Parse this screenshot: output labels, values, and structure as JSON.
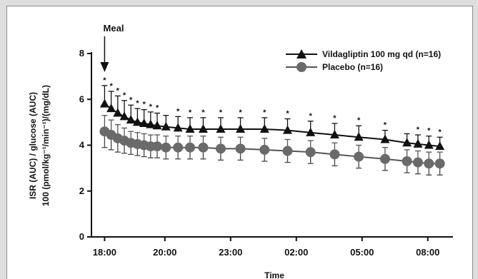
{
  "chart_data": {
    "type": "line",
    "xlabel": "Time",
    "ylabel_line1": "ISR (AUC) / glucose (AUC)",
    "ylabel_line2": "100 (pmol/kg⁻¹/min⁻¹)/(mg/dL)",
    "ylim": [
      0,
      8
    ],
    "yticks": [
      "0",
      "2",
      "4",
      "6",
      "8"
    ],
    "xticks": [
      "18:00",
      "20:00",
      "23:00",
      "02:00",
      "05:00",
      "08:00"
    ],
    "xtick_hours": [
      18,
      20.75,
      23.75,
      26.75,
      29.75,
      32.75
    ],
    "xlim_hours": [
      17.4,
      33.9
    ],
    "annotation": {
      "label": "Meal",
      "x_hour": 18.0
    },
    "grid": false,
    "legend_position": "top-right",
    "x_hours": [
      18.0,
      18.3,
      18.6,
      18.9,
      19.2,
      19.5,
      19.8,
      20.1,
      20.4,
      20.8,
      21.35,
      21.9,
      22.5,
      23.3,
      24.2,
      25.3,
      26.35,
      27.4,
      28.5,
      29.6,
      30.8,
      31.8,
      32.3,
      32.8,
      33.3
    ],
    "series": [
      {
        "name": "Vildagliptin  100 mg qd (n=16)",
        "marker": "triangle",
        "y": [
          5.8,
          5.6,
          5.4,
          5.25,
          5.1,
          5.0,
          4.95,
          4.9,
          4.85,
          4.8,
          4.75,
          4.7,
          4.7,
          4.7,
          4.7,
          4.7,
          4.65,
          4.55,
          4.45,
          4.35,
          4.25,
          4.1,
          4.05,
          4.0,
          3.95
        ],
        "err": [
          0.8,
          0.75,
          0.75,
          0.7,
          0.65,
          0.6,
          0.6,
          0.55,
          0.55,
          0.5,
          0.5,
          0.5,
          0.5,
          0.5,
          0.5,
          0.5,
          0.5,
          0.5,
          0.5,
          0.5,
          0.4,
          0.4,
          0.4,
          0.4,
          0.4
        ],
        "significant": [
          true,
          true,
          true,
          true,
          true,
          true,
          true,
          true,
          true,
          false,
          true,
          true,
          true,
          true,
          true,
          true,
          true,
          true,
          true,
          true,
          true,
          false,
          true,
          true,
          true
        ]
      },
      {
        "name": "Placebo (n=16)",
        "marker": "circle",
        "y": [
          4.6,
          4.45,
          4.3,
          4.2,
          4.1,
          4.05,
          4.0,
          3.95,
          3.95,
          3.9,
          3.9,
          3.9,
          3.9,
          3.85,
          3.85,
          3.8,
          3.75,
          3.7,
          3.6,
          3.5,
          3.4,
          3.3,
          3.25,
          3.2,
          3.2
        ],
        "err": [
          0.7,
          0.65,
          0.6,
          0.55,
          0.5,
          0.5,
          0.5,
          0.5,
          0.5,
          0.5,
          0.5,
          0.5,
          0.5,
          0.5,
          0.5,
          0.5,
          0.5,
          0.5,
          0.5,
          0.5,
          0.5,
          0.5,
          0.5,
          0.5,
          0.5
        ]
      }
    ]
  }
}
